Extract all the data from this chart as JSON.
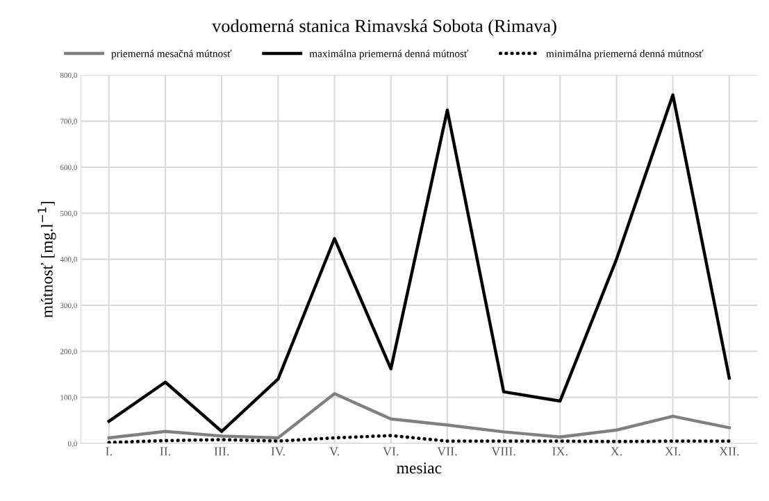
{
  "chart_data": {
    "type": "line",
    "title": "vodomerná stanica Rimavská Sobota (Rimava)",
    "xlabel": "mesiac",
    "ylabel": "mútnosť [mg.l$^{−1}$]",
    "categories": [
      "I.",
      "II.",
      "III.",
      "IV.",
      "V.",
      "VI.",
      "VII.",
      "VIII.",
      "IX.",
      "X.",
      "XI.",
      "XII."
    ],
    "series": [
      {
        "name": "priemerná mesačná mútnosť",
        "color": "#808080",
        "line_style": "solid",
        "values": [
          12,
          26,
          16,
          12,
          108,
          53,
          40,
          25,
          14,
          29,
          59,
          34
        ]
      },
      {
        "name": "maximálna priemerná denná mútnosť",
        "color": "#000000",
        "line_style": "solid",
        "values": [
          48,
          133,
          26,
          140,
          445,
          162,
          724,
          112,
          92,
          400,
          757,
          142
        ]
      },
      {
        "name": "minimálna priemerná denná mútnosť",
        "color": "#000000",
        "line_style": "dotted",
        "values": [
          2,
          6,
          8,
          5,
          12,
          17,
          5,
          5,
          5,
          4,
          5,
          5
        ]
      }
    ],
    "ylim": [
      0,
      800
    ],
    "yticks": [
      {
        "value": 0,
        "label": "0,0"
      },
      {
        "value": 100,
        "label": "100,0"
      },
      {
        "value": 200,
        "label": "200,0"
      },
      {
        "value": 300,
        "label": "300,0"
      },
      {
        "value": 400,
        "label": "400,0"
      },
      {
        "value": 500,
        "label": "500,0"
      },
      {
        "value": 600,
        "label": "600,0"
      },
      {
        "value": 700,
        "label": "700,0"
      },
      {
        "value": 800,
        "label": "800,0"
      }
    ],
    "grid": true,
    "legend": "top",
    "marker": "none"
  }
}
